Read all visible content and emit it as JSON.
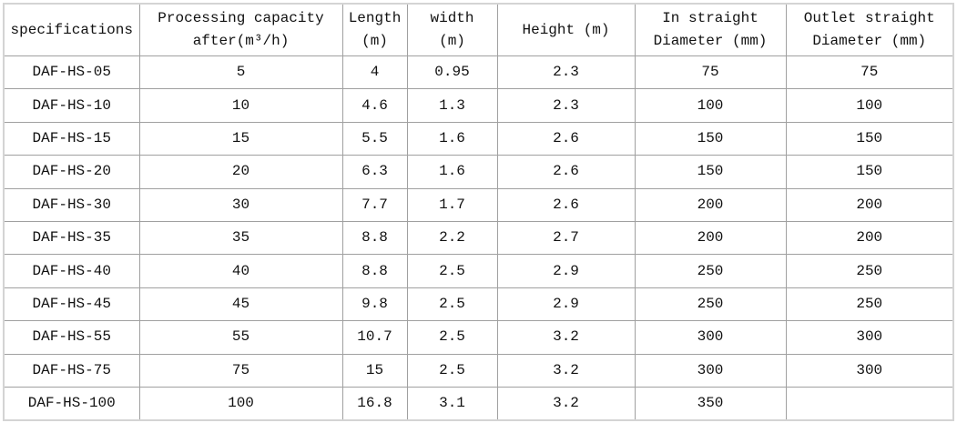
{
  "headers": [
    {
      "line1": "specifications",
      "line2": ""
    },
    {
      "line1": "Processing capacity",
      "line2": "after(m³/h)"
    },
    {
      "line1": "Length",
      "line2": "(m)"
    },
    {
      "line1": "width",
      "line2": "(m)"
    },
    {
      "line1": "Height (m)",
      "line2": ""
    },
    {
      "line1": "In straight",
      "line2": "Diameter (mm)"
    },
    {
      "line1": "Outlet straight",
      "line2": "Diameter (mm)"
    }
  ],
  "rows": [
    [
      "DAF-HS-05",
      "5",
      "4",
      "0.95",
      "2.3",
      "75",
      "75"
    ],
    [
      "DAF-HS-10",
      "10",
      "4.6",
      "1.3",
      "2.3",
      "100",
      "100"
    ],
    [
      "DAF-HS-15",
      "15",
      "5.5",
      "1.6",
      "2.6",
      "150",
      "150"
    ],
    [
      "DAF-HS-20",
      "20",
      "6.3",
      "1.6",
      "2.6",
      "150",
      "150"
    ],
    [
      "DAF-HS-30",
      "30",
      "7.7",
      "1.7",
      "2.6",
      "200",
      "200"
    ],
    [
      "DAF-HS-35",
      "35",
      "8.8",
      "2.2",
      "2.7",
      "200",
      "200"
    ],
    [
      "DAF-HS-40",
      "40",
      "8.8",
      "2.5",
      "2.9",
      "250",
      "250"
    ],
    [
      "DAF-HS-45",
      "45",
      "9.8",
      "2.5",
      "2.9",
      "250",
      "250"
    ],
    [
      "DAF-HS-55",
      "55",
      "10.7",
      "2.5",
      "3.2",
      "300",
      "300"
    ],
    [
      "DAF-HS-75",
      "75",
      "15",
      "2.5",
      "3.2",
      "300",
      "300"
    ],
    [
      "DAF-HS-100",
      "100",
      "16.8",
      "3.1",
      "3.2",
      "350",
      ""
    ]
  ]
}
